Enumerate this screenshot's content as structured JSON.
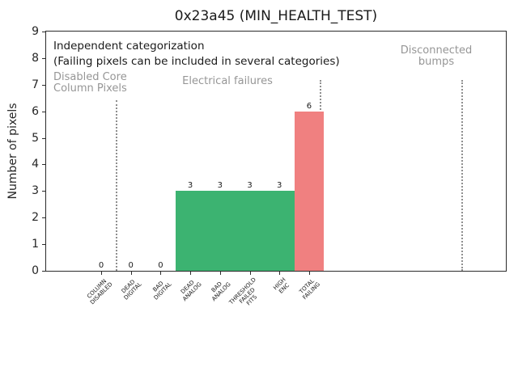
{
  "chart_data": {
    "type": "bar",
    "title": "0x23a45 (MIN_HEALTH_TEST)",
    "xlabel": "",
    "ylabel": "Number of pixels",
    "ylim": [
      0,
      9
    ],
    "y_ticks": [
      0,
      1,
      2,
      3,
      4,
      5,
      6,
      7,
      8,
      9
    ],
    "grid": false,
    "legend": null,
    "categories": [
      "COLUMN\nDISABLED",
      "DEAD\nDIGITAL",
      "BAD\nDIGITAL",
      "DEAD\nANALOG",
      "BAD\nANALOG",
      "THRESHOLD\nFAILED\nFITS",
      "HIGH\nENC",
      "TOTAL\nFAILING"
    ],
    "values": [
      0,
      0,
      0,
      3,
      3,
      3,
      3,
      6
    ],
    "bar_colors": [
      "#3cb371",
      "#3cb371",
      "#3cb371",
      "#3cb371",
      "#3cb371",
      "#3cb371",
      "#3cb371",
      "#f08080"
    ],
    "annotations": {
      "note_line1": "Independent categorization",
      "note_line2": "(Failing pixels can be included in several categories)",
      "section_labels": [
        {
          "text": "Disabled Core\nColumn Pixels"
        },
        {
          "text": "Electrical failures"
        },
        {
          "text": "Disconnected\nbumps"
        }
      ]
    },
    "colors": {
      "bar_green": "#3cb371",
      "bar_red": "#f08080",
      "section_text": "#969696",
      "divider": "#8f8f8f",
      "spine": "#2b2b2b"
    }
  }
}
